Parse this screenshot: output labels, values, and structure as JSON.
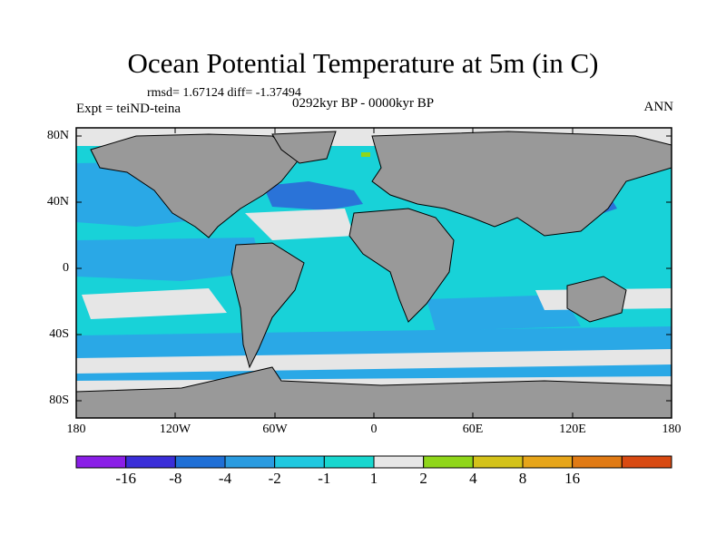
{
  "title": "Ocean Potential Temperature at 5m (in C)",
  "stats": "rmsd= 1.67124 diff= -1.37494",
  "experiment": "Expt = teiND-teina",
  "period": "0292kyr BP - 0000kyr BP",
  "season": "ANN",
  "lat_labels": [
    "80N",
    "40N",
    "0",
    "40S",
    "80S"
  ],
  "lon_labels": [
    "180",
    "120W",
    "60W",
    "0",
    "60E",
    "120E",
    "180"
  ],
  "colorbar": {
    "colors": [
      "#8a1ee6",
      "#3a2ed8",
      "#1f6fd6",
      "#2a9be0",
      "#1fc8e0",
      "#18d7cf",
      "#e6e6e6",
      "#8fd61a",
      "#d4c21a",
      "#e6a51a",
      "#e07a14",
      "#d84a12"
    ],
    "labels": [
      "-16",
      "-8",
      "-4",
      "-2",
      "-1",
      "1",
      "2",
      "4",
      "8",
      "16"
    ]
  },
  "colors": {
    "land": "#999999",
    "cool_strong": "#2a73d8",
    "cool": "#2aa8e6",
    "cool_weak": "#18d2d8",
    "neutral": "#e6e6e6",
    "warm": "#8fd61a"
  }
}
